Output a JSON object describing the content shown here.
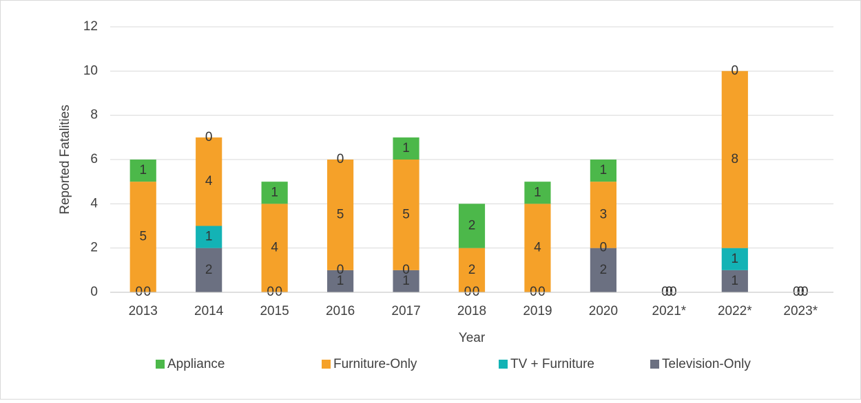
{
  "chart_data": {
    "type": "stacked_bar",
    "x_label": "Year",
    "y_label": "Reported Fatalities",
    "categories": [
      "2013",
      "2014",
      "2015",
      "2016",
      "2017",
      "2018",
      "2019",
      "2020",
      "2021*",
      "2022*",
      "2023*"
    ],
    "series": [
      {
        "name": "Television-Only",
        "color": "#6b7081",
        "values": [
          0,
          2,
          0,
          1,
          1,
          0,
          0,
          2,
          0,
          1,
          0
        ]
      },
      {
        "name": "TV + Furniture",
        "color": "#13b3b5",
        "values": [
          0,
          1,
          0,
          0,
          0,
          0,
          0,
          0,
          0,
          1,
          0
        ]
      },
      {
        "name": "Furniture-Only",
        "color": "#f5a129",
        "values": [
          5,
          4,
          4,
          5,
          5,
          2,
          4,
          3,
          0,
          8,
          0
        ]
      },
      {
        "name": "Appliance",
        "color": "#4cb84a",
        "values": [
          1,
          0,
          1,
          0,
          1,
          2,
          1,
          1,
          0,
          0,
          0
        ]
      }
    ],
    "ylim": [
      0,
      12
    ],
    "yticks": [
      0,
      2,
      4,
      6,
      8,
      10,
      12
    ],
    "grid": true,
    "legend": "bottom"
  }
}
